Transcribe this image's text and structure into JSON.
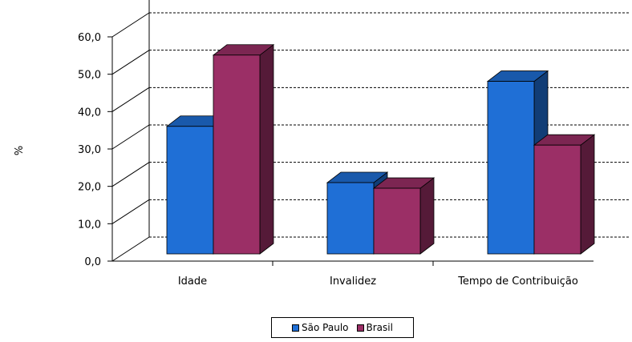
{
  "chart_data": {
    "type": "bar",
    "title": "",
    "ylabel": "%",
    "xlabel": "",
    "categories": [
      "Idade",
      "Invalidez",
      "Tempo de Contribuição"
    ],
    "series": [
      {
        "name": "São Paulo",
        "values": [
          34.0,
          19.0,
          46.0
        ],
        "color": "#1f6fd6"
      },
      {
        "name": "Brasil",
        "values": [
          53.0,
          17.5,
          29.0
        ],
        "color": "#9b2f66"
      }
    ],
    "ylim": [
      0,
      60
    ],
    "yticks": [
      "0,0",
      "10,0",
      "20,0",
      "30,0",
      "40,0",
      "50,0",
      "60,0"
    ],
    "grid": true,
    "legend_position": "bottom"
  }
}
